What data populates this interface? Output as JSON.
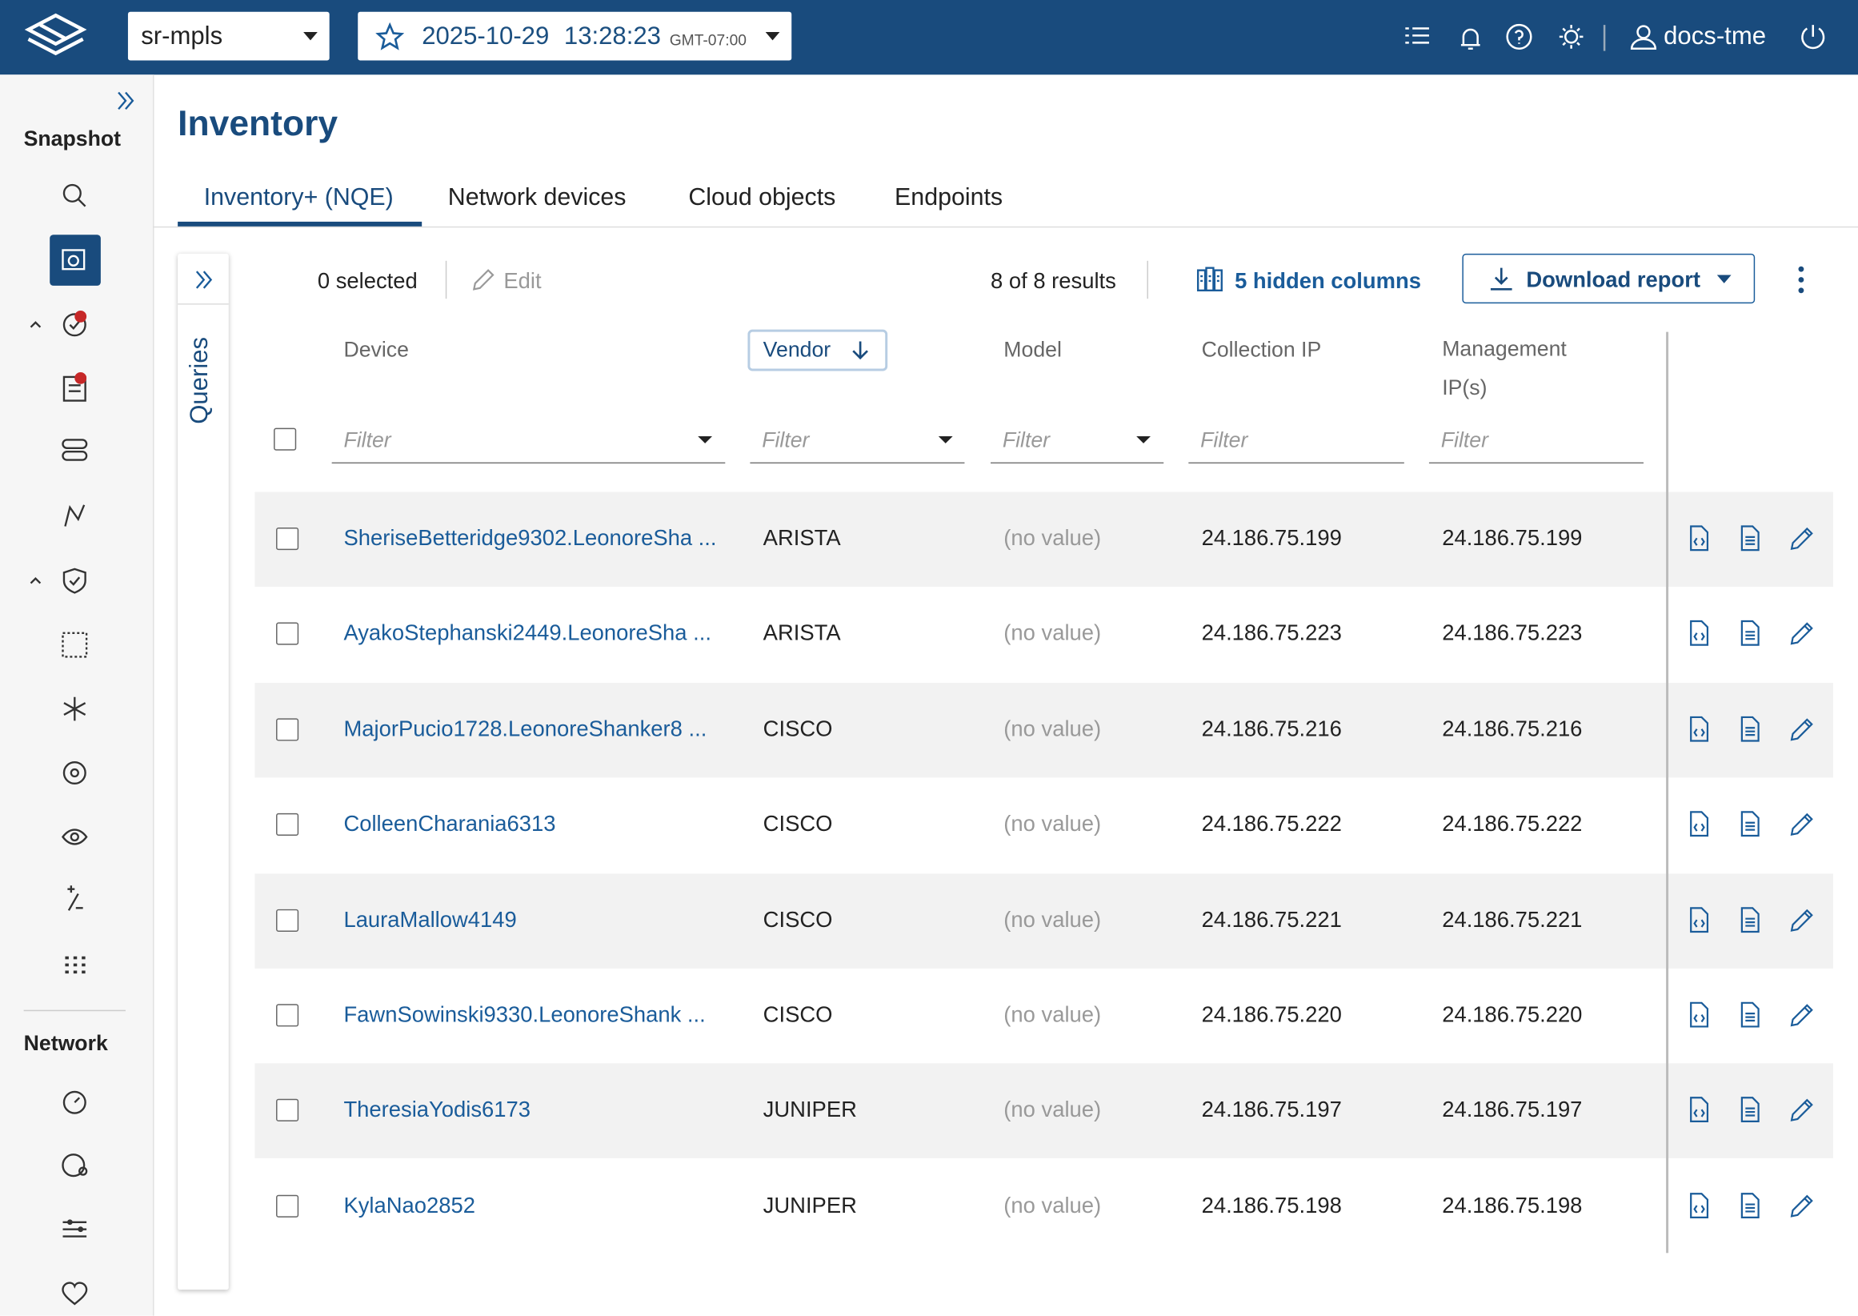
{
  "header": {
    "network": "sr-mpls",
    "date": "2025-10-29",
    "time": "13:28:23",
    "timezone": "GMT-07:00",
    "user": "docs-tme"
  },
  "page": {
    "title": "Inventory",
    "tabs": [
      "Inventory+ (NQE)",
      "Network devices",
      "Cloud objects",
      "Endpoints"
    ]
  },
  "sidebar": {
    "sections": [
      "Snapshot",
      "Network"
    ]
  },
  "queries_panel": {
    "label": "Queries"
  },
  "toolbar": {
    "selected": "0 selected",
    "edit": "Edit",
    "results": "8 of 8 results",
    "hidden_columns": "5 hidden columns",
    "download": "Download report"
  },
  "table": {
    "columns": [
      "Device",
      "Vendor",
      "Model",
      "Collection IP",
      "Management IP(s)"
    ],
    "filter_placeholder": "Filter",
    "rows": [
      [
        "SheriseBetteridge9302.LeonoreSha ...",
        "ARISTA",
        "(no value)",
        "24.186.75.199",
        "24.186.75.199"
      ],
      [
        "AyakoStephanski2449.LeonoreSha ...",
        "ARISTA",
        "(no value)",
        "24.186.75.223",
        "24.186.75.223"
      ],
      [
        "MajorPucio1728.LeonoreShanker8 ...",
        "CISCO",
        "(no value)",
        "24.186.75.216",
        "24.186.75.216"
      ],
      [
        "ColleenCharania6313",
        "CISCO",
        "(no value)",
        "24.186.75.222",
        "24.186.75.222"
      ],
      [
        "LauraMallow4149",
        "CISCO",
        "(no value)",
        "24.186.75.221",
        "24.186.75.221"
      ],
      [
        "FawnSowinski9330.LeonoreShank ...",
        "CISCO",
        "(no value)",
        "24.186.75.220",
        "24.186.75.220"
      ],
      [
        "TheresiaYodis6173",
        "JUNIPER",
        "(no value)",
        "24.186.75.197",
        "24.186.75.197"
      ],
      [
        "KylaNao2852",
        "JUNIPER",
        "(no value)",
        "24.186.75.198",
        "24.186.75.198"
      ]
    ]
  }
}
